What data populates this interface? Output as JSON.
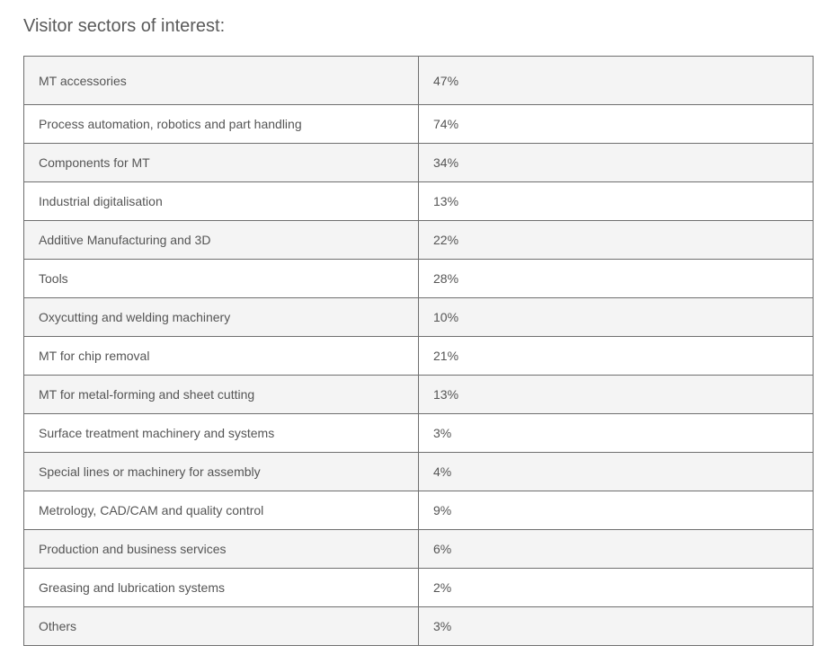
{
  "heading": "Visitor sectors of interest:",
  "rows": [
    {
      "sector": "MT accessories",
      "percent": "47%"
    },
    {
      "sector": "Process automation, robotics and part handling",
      "percent": "74%"
    },
    {
      "sector": "Components for MT",
      "percent": "34%"
    },
    {
      "sector": "Industrial digitalisation",
      "percent": "13%"
    },
    {
      "sector": "Additive Manufacturing and 3D",
      "percent": "22%"
    },
    {
      "sector": "Tools",
      "percent": "28%"
    },
    {
      "sector": "Oxycutting and welding machinery",
      "percent": "10%"
    },
    {
      "sector": "MT for chip removal",
      "percent": "21%"
    },
    {
      "sector": "MT for metal-forming and sheet cutting",
      "percent": "13%"
    },
    {
      "sector": "Surface treatment machinery and systems",
      "percent": "3%"
    },
    {
      "sector": "Special lines or machinery for assembly",
      "percent": "4%"
    },
    {
      "sector": "Metrology, CAD/CAM and quality control",
      "percent": "9%"
    },
    {
      "sector": "Production and business services",
      "percent": "6%"
    },
    {
      "sector": "Greasing and lubrication systems",
      "percent": "2%"
    },
    {
      "sector": "Others",
      "percent": "3%"
    }
  ]
}
